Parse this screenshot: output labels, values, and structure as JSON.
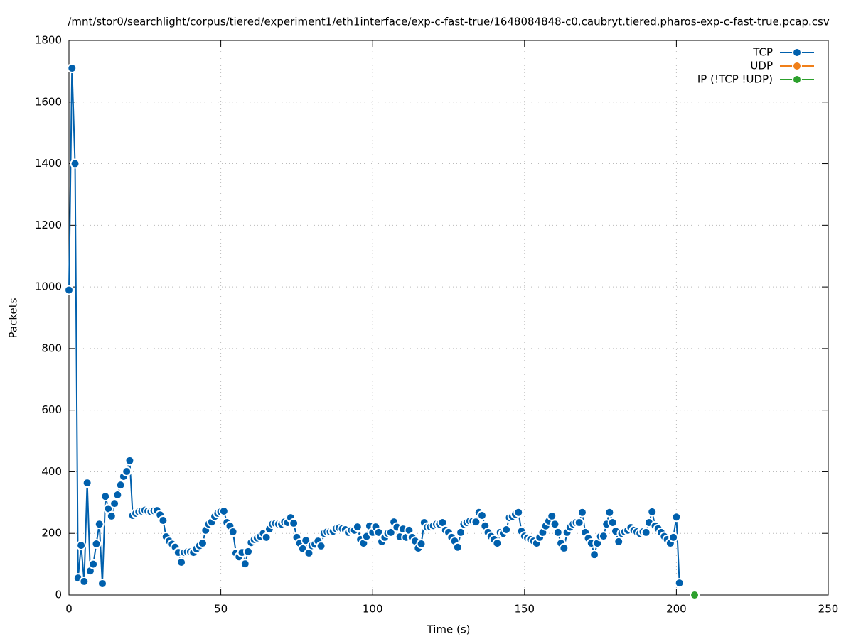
{
  "chart_data": {
    "type": "line",
    "title": "/mnt/stor0/searchlight/corpus/tiered/experiment1/eth1interface/exp-c-fast-true/1648084848-c0.caubryt.tiered.pharos-exp-c-fast-true.pcap.csv",
    "x_label": "Time (s)",
    "y_label": "Packets",
    "xlim": [
      0,
      250
    ],
    "xticks": [
      0,
      50,
      100,
      150,
      200,
      250
    ],
    "ylim": [
      0,
      1800
    ],
    "yticks": [
      0,
      200,
      400,
      600,
      800,
      1000,
      1200,
      1400,
      1600,
      1800
    ],
    "grid": true,
    "legend": "top-right",
    "series": [
      {
        "name": "TCP",
        "color": "#0060ad",
        "x": [
          0,
          1,
          2,
          3,
          4,
          5,
          6,
          7,
          8,
          9,
          10,
          11,
          12,
          13,
          14,
          15,
          16,
          17,
          18,
          19,
          20,
          21,
          22,
          23,
          24,
          25,
          26,
          27,
          28,
          29,
          30,
          31,
          32,
          33,
          34,
          35,
          36,
          37,
          38,
          39,
          40,
          41,
          42,
          43,
          44,
          45,
          46,
          47,
          48,
          49,
          50,
          51,
          52,
          53,
          54,
          55,
          56,
          57,
          58,
          59,
          60,
          61,
          62,
          63,
          64,
          65,
          66,
          67,
          68,
          69,
          70,
          71,
          72,
          73,
          74,
          75,
          76,
          77,
          78,
          79,
          80,
          81,
          82,
          83,
          84,
          85,
          86,
          87,
          88,
          89,
          90,
          91,
          92,
          93,
          94,
          95,
          96,
          97,
          98,
          99,
          100,
          101,
          102,
          103,
          104,
          105,
          106,
          107,
          108,
          109,
          110,
          111,
          112,
          113,
          114,
          115,
          116,
          117,
          118,
          119,
          120,
          121,
          122,
          123,
          124,
          125,
          126,
          127,
          128,
          129,
          130,
          131,
          132,
          133,
          134,
          135,
          136,
          137,
          138,
          139,
          140,
          141,
          142,
          143,
          144,
          145,
          146,
          147,
          148,
          149,
          150,
          151,
          152,
          153,
          154,
          155,
          156,
          157,
          158,
          159,
          160,
          161,
          162,
          163,
          164,
          165,
          166,
          167,
          168,
          169,
          170,
          171,
          172,
          173,
          174,
          175,
          176,
          177,
          178,
          179,
          180,
          181,
          182,
          183,
          184,
          185,
          186,
          187,
          188,
          189,
          190,
          191,
          192,
          193,
          194,
          195,
          196,
          197,
          198,
          199,
          200,
          201
        ],
        "values": [
          990,
          1710,
          1400,
          55,
          161,
          44,
          364,
          78,
          100,
          166,
          230,
          37,
          320,
          280,
          256,
          297,
          325,
          357,
          385,
          401,
          436,
          258,
          265,
          270,
          272,
          275,
          272,
          270,
          273,
          274,
          260,
          242,
          189,
          175,
          165,
          155,
          138,
          106,
          138,
          140,
          140,
          138,
          150,
          160,
          168,
          210,
          230,
          237,
          255,
          265,
          270,
          272,
          235,
          224,
          205,
          136,
          124,
          138,
          101,
          141,
          170,
          180,
          185,
          190,
          200,
          187,
          214,
          230,
          232,
          230,
          230,
          237,
          235,
          251,
          233,
          187,
          168,
          150,
          177,
          136,
          160,
          165,
          175,
          159,
          200,
          205,
          205,
          207,
          215,
          218,
          215,
          212,
          203,
          210,
          210,
          221,
          180,
          168,
          190,
          224,
          203,
          221,
          203,
          173,
          187,
          200,
          203,
          237,
          220,
          189,
          214,
          187,
          210,
          187,
          175,
          152,
          166,
          235,
          220,
          221,
          225,
          230,
          230,
          235,
          210,
          203,
          187,
          175,
          155,
          203,
          230,
          235,
          240,
          240,
          237,
          268,
          258,
          224,
          203,
          190,
          180,
          168,
          203,
          200,
          212,
          251,
          255,
          262,
          268,
          207,
          191,
          185,
          180,
          175,
          168,
          187,
          203,
          224,
          240,
          256,
          230,
          203,
          168,
          152,
          203,
          220,
          230,
          235,
          235,
          268,
          203,
          184,
          168,
          131,
          168,
          190,
          191,
          230,
          268,
          235,
          207,
          173,
          200,
          205,
          210,
          219,
          210,
          205,
          200,
          205,
          203,
          235,
          270,
          224,
          215,
          203,
          190,
          180,
          168,
          187,
          253,
          39
        ]
      },
      {
        "name": "UDP",
        "color": "#f07f19",
        "x": [],
        "values": []
      },
      {
        "name": "IP (!TCP  !UDP)",
        "color": "#2ca02c",
        "x": [
          206
        ],
        "values": [
          0
        ]
      }
    ]
  }
}
